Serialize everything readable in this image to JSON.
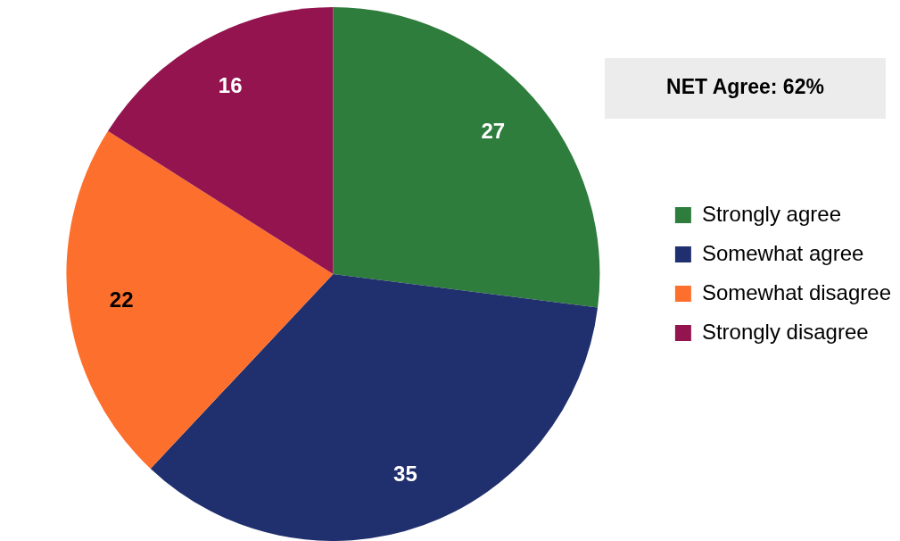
{
  "chart_data": {
    "type": "pie",
    "categories": [
      "Strongly agree",
      "Somewhat agree",
      "Somewhat disagree",
      "Strongly disagree"
    ],
    "values": [
      27,
      35,
      22,
      16
    ],
    "colors": [
      "#2e7d3c",
      "#202f6e",
      "#fd6f2c",
      "#93144f"
    ],
    "data_labels": true,
    "legend": "right",
    "annotations": [
      "NET Agree: 62%"
    ]
  }
}
